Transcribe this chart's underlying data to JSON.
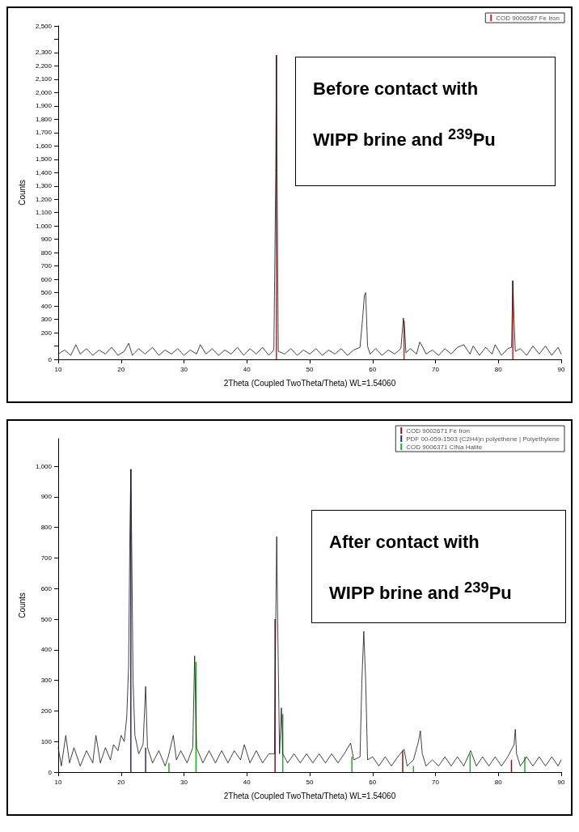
{
  "chart_data": [
    {
      "type": "line",
      "xlabel": "2Theta (Coupled TwoTheta/Theta) WL=1.54060",
      "ylabel": "Counts",
      "annotations": [
        "Before contact with WIPP brine and $^{239}$Pu"
      ],
      "xlim": [
        10,
        90
      ],
      "xticks": [
        10,
        20,
        30,
        40,
        50,
        60,
        70,
        80,
        90
      ],
      "ylim": [
        0,
        2500
      ],
      "yticks": [
        0,
        {
          "value": 100,
          "label": null
        },
        200,
        300,
        400,
        500,
        600,
        700,
        800,
        900,
        {
          "value": 1000,
          "label": "1,000"
        },
        {
          "value": 1100,
          "label": "1,100"
        },
        {
          "value": 1200,
          "label": "1,200"
        },
        {
          "value": 1300,
          "label": "1,300"
        },
        {
          "value": 1400,
          "label": "1,400"
        },
        {
          "value": 1500,
          "label": "1,500"
        },
        {
          "value": 1600,
          "label": "1,600"
        },
        {
          "value": 1700,
          "label": "1,700"
        },
        {
          "value": 1800,
          "label": "1,800"
        },
        {
          "value": 1900,
          "label": "1,900"
        },
        {
          "value": 2000,
          "label": "2,000"
        },
        {
          "value": 2100,
          "label": "2,100"
        },
        {
          "value": 2200,
          "label": "2,200"
        },
        {
          "value": 2300,
          "label": "2,300"
        },
        {
          "value": 2400,
          "label": null
        },
        {
          "value": 2500,
          "label": "2,500"
        }
      ],
      "grid": false,
      "legend": "top right",
      "marker": "none",
      "line_style": "solid",
      "series": [
        {
          "color": "#111111",
          "x": [
            10,
            11,
            12,
            12.8,
            13.5,
            14.5,
            15.5,
            16.5,
            17.5,
            18.5,
            19.5,
            20.5,
            21.2,
            21.8,
            22.8,
            23.8,
            25,
            26,
            27,
            28,
            29,
            30,
            31,
            32,
            32.6,
            33.5,
            34.5,
            35.5,
            36.5,
            37.5,
            38.5,
            39.5,
            40.5,
            41.5,
            42.5,
            43.5,
            44.3,
            44.6,
            44.7,
            44.8,
            45,
            46,
            47,
            48,
            49,
            50,
            51,
            52,
            53,
            54,
            55,
            56,
            57,
            58,
            58.4,
            58.7,
            58.9,
            59.2,
            59.6,
            60.5,
            61.5,
            62.5,
            63.5,
            64.5,
            64.9,
            65.1,
            65.3,
            66,
            67,
            67.5,
            68,
            68.5,
            69.5,
            70.5,
            71.5,
            72.5,
            73.5,
            74.5,
            75.5,
            76,
            77,
            78,
            79,
            79.5,
            80.5,
            81.5,
            82.1,
            82.3,
            82.5,
            82.7,
            83.5,
            84.5,
            85.5,
            86.5,
            87.5,
            88.5,
            89.5,
            90
          ],
          "values": [
            40,
            70,
            30,
            110,
            40,
            80,
            30,
            70,
            40,
            90,
            30,
            60,
            120,
            30,
            80,
            40,
            90,
            30,
            70,
            40,
            80,
            30,
            70,
            40,
            110,
            40,
            80,
            30,
            70,
            40,
            90,
            30,
            80,
            40,
            90,
            30,
            70,
            1400,
            2280,
            1400,
            60,
            40,
            80,
            30,
            70,
            40,
            80,
            30,
            70,
            40,
            80,
            30,
            70,
            90,
            300,
            480,
            500,
            100,
            40,
            80,
            30,
            70,
            40,
            80,
            310,
            220,
            50,
            80,
            40,
            130,
            90,
            40,
            70,
            30,
            80,
            40,
            90,
            110,
            40,
            100,
            30,
            90,
            40,
            110,
            30,
            80,
            90,
            590,
            300,
            60,
            80,
            30,
            100,
            40,
            100,
            30,
            90,
            40
          ]
        },
        {
          "type": "bar",
          "name": "COD 9006587 Fe Iron",
          "color": "#cc2222",
          "x": [
            44.7,
            65.0,
            82.3
          ],
          "values": [
            2280,
            290,
            590
          ]
        }
      ]
    },
    {
      "type": "line",
      "xlabel": "2Theta (Coupled TwoTheta/Theta) WL=1.54060",
      "ylabel": "Counts",
      "annotations": [
        "After contact with WIPP brine and $^{239}$Pu"
      ],
      "xlim": [
        10,
        90
      ],
      "xticks": [
        10,
        20,
        30,
        40,
        50,
        60,
        70,
        80,
        90
      ],
      "ylim": [
        0,
        1090
      ],
      "yticks": [
        0,
        100,
        200,
        300,
        400,
        500,
        600,
        700,
        800,
        900,
        {
          "value": 1000,
          "label": "1,000"
        }
      ],
      "grid": false,
      "legend": "top right",
      "marker": "none",
      "line_style": "solid",
      "series": [
        {
          "color": "#111111",
          "x": [
            10,
            10.5,
            11.2,
            11.8,
            12.5,
            13.5,
            14.5,
            15.5,
            16,
            16.7,
            17.5,
            18.3,
            18.8,
            19.5,
            20,
            20.5,
            20.9,
            21.2,
            21.4,
            21.55,
            21.7,
            21.9,
            22.2,
            22.8,
            23.5,
            23.9,
            24.2,
            25,
            26,
            27,
            27.5,
            28.3,
            28.8,
            29.5,
            30.5,
            31.4,
            31.7,
            32,
            33,
            34,
            35,
            36,
            37,
            38,
            39,
            39.6,
            40.5,
            41.5,
            42.5,
            43.5,
            44.4,
            44.6,
            44.75,
            44.9,
            45.2,
            45.5,
            45.7,
            46.5,
            47.5,
            48.5,
            49.5,
            50.5,
            51.5,
            52.5,
            53.5,
            54.5,
            55.5,
            56.5,
            57,
            58,
            58.3,
            58.6,
            58.9,
            59.2,
            60,
            61,
            62,
            63,
            64,
            65,
            65.5,
            66.5,
            67.3,
            67.6,
            67.9,
            68.5,
            69.5,
            70.5,
            71.5,
            72.5,
            73.5,
            74.5,
            75.6,
            76.5,
            77.5,
            78.5,
            79.5,
            80.5,
            81.5,
            82.5,
            82.7,
            82.9,
            83.5,
            84.5,
            85.5,
            86.5,
            87.5,
            88.5,
            89.5,
            90
          ],
          "values": [
            80,
            20,
            120,
            30,
            80,
            20,
            70,
            30,
            120,
            30,
            80,
            40,
            90,
            70,
            120,
            100,
            180,
            350,
            780,
            990,
            720,
            300,
            120,
            60,
            90,
            280,
            80,
            30,
            70,
            20,
            50,
            120,
            40,
            70,
            30,
            80,
            380,
            80,
            30,
            70,
            30,
            70,
            30,
            70,
            40,
            90,
            30,
            70,
            30,
            60,
            60,
            500,
            770,
            500,
            60,
            210,
            60,
            30,
            60,
            30,
            60,
            30,
            60,
            30,
            60,
            30,
            60,
            95,
            40,
            50,
            300,
            460,
            300,
            40,
            50,
            20,
            50,
            20,
            50,
            75,
            20,
            40,
            100,
            135,
            60,
            20,
            40,
            20,
            50,
            20,
            50,
            20,
            70,
            20,
            50,
            20,
            50,
            20,
            50,
            90,
            140,
            60,
            20,
            50,
            20,
            50,
            20,
            50,
            20,
            40
          ]
        },
        {
          "type": "bar",
          "name": "COD 9002671 Fe Iron",
          "color": "#7a1a1a",
          "x": [
            44.7,
            65.0,
            82.3
          ],
          "values": [
            500,
            70,
            40
          ]
        },
        {
          "type": "bar",
          "name": "PDF 00-059-1503 (C2H4)n polyethene | Polyethylene",
          "color": "#2a2a7a",
          "x": [
            21.55,
            23.9
          ],
          "values": [
            990,
            80
          ]
        },
        {
          "type": "bar",
          "name": "COD 9006371 ClNa Halite",
          "color": "#22aa22",
          "x": [
            27.4,
            31.7,
            45.5,
            56.5,
            66.3,
            75.3,
            84.0
          ],
          "values": [
            30,
            360,
            190,
            50,
            20,
            60,
            50
          ]
        }
      ]
    }
  ]
}
